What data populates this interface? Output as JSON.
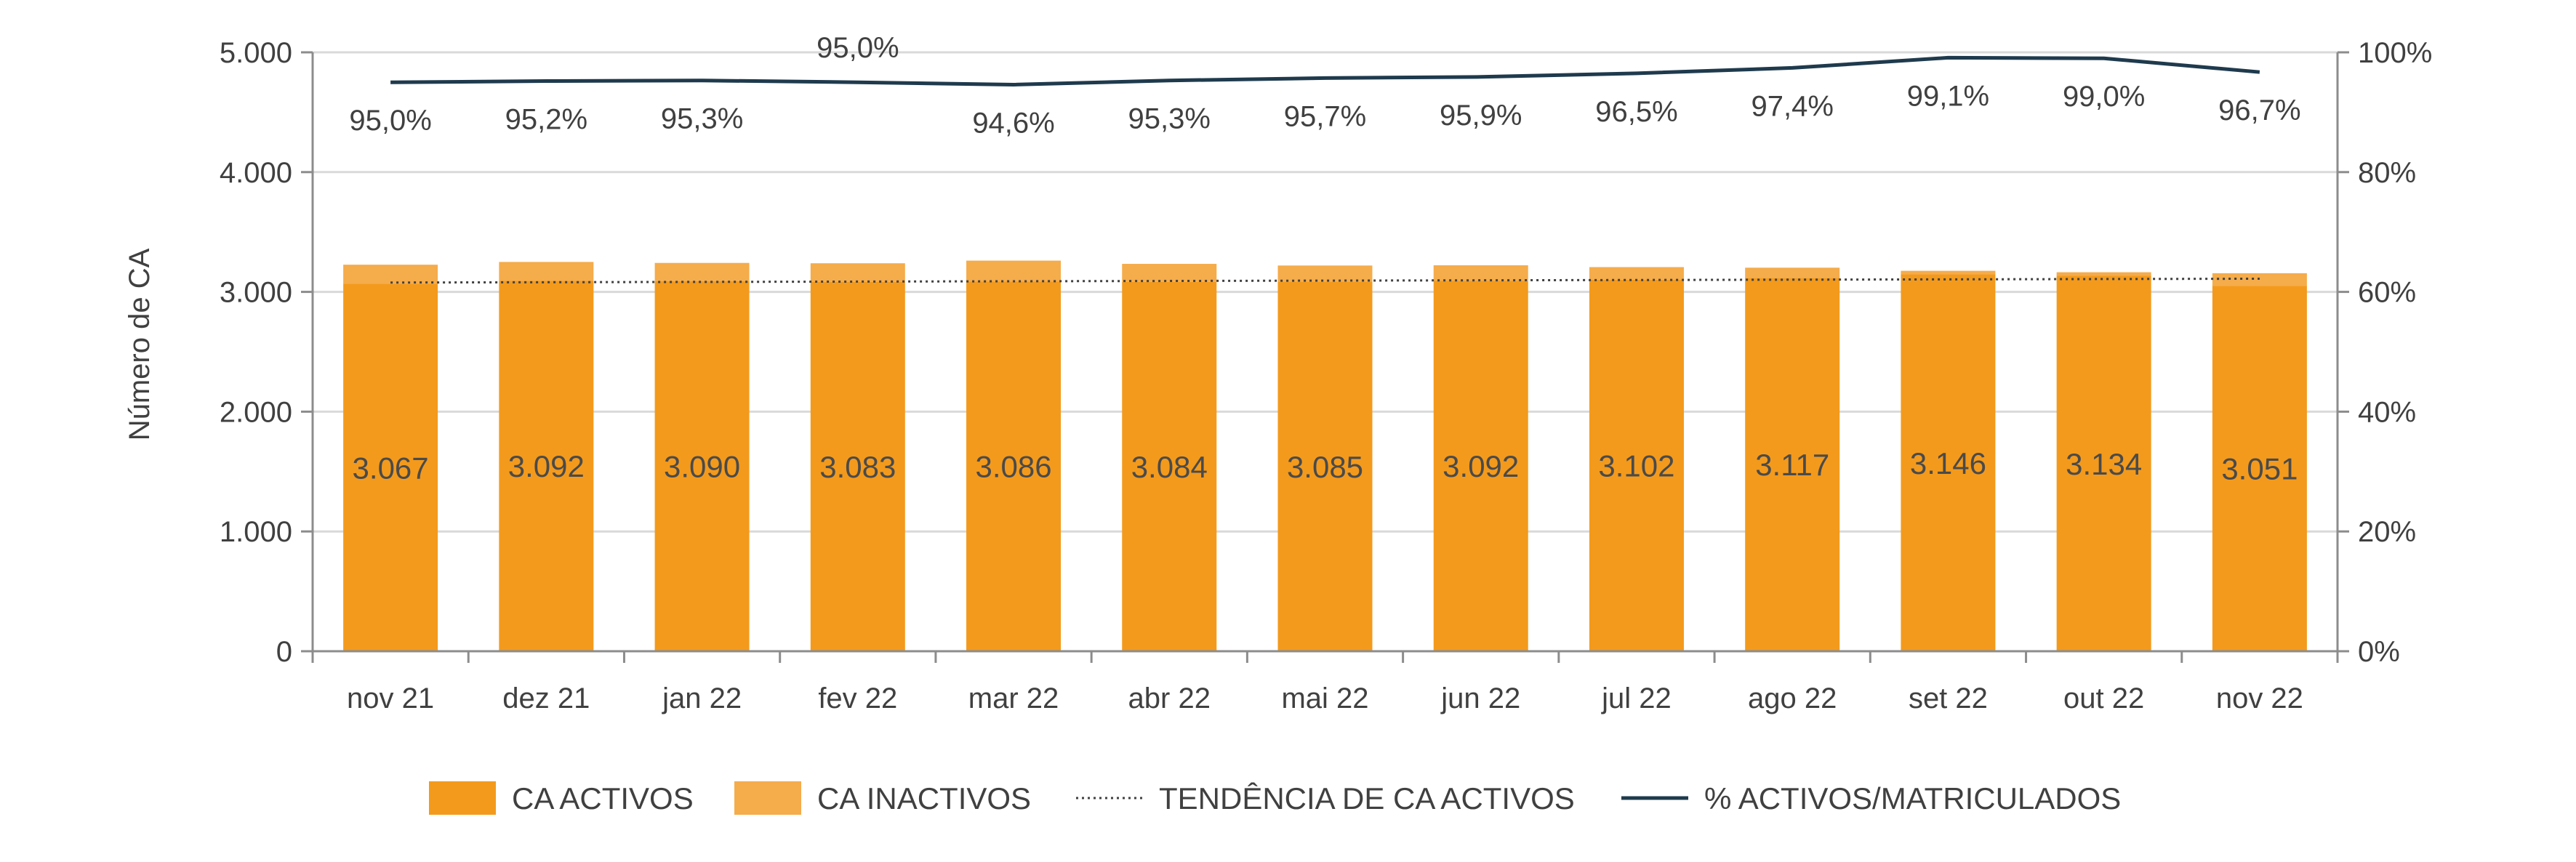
{
  "chart_data": {
    "type": "bar",
    "ylabel": "Número de CA",
    "categories": [
      "nov 21",
      "dez 21",
      "jan 22",
      "fev 22",
      "mar 22",
      "abr 22",
      "mai 22",
      "jun 22",
      "jul 22",
      "ago 22",
      "set 22",
      "out 22",
      "nov 22"
    ],
    "series": [
      {
        "name": "CA ACTIVOS",
        "type": "bar",
        "axis": "left",
        "color": "#F39A1C",
        "values": [
          3067,
          3092,
          3090,
          3083,
          3086,
          3084,
          3085,
          3092,
          3102,
          3117,
          3146,
          3134,
          3051
        ],
        "labels": [
          "3.067",
          "3.092",
          "3.090",
          "3.083",
          "3.086",
          "3.084",
          "3.085",
          "3.092",
          "3.102",
          "3.117",
          "3.146",
          "3.134",
          "3.051"
        ]
      },
      {
        "name": "CA INACTIVOS",
        "type": "bar-stacked",
        "axis": "left",
        "color": "#F5AC4B",
        "values": [
          160,
          158,
          152,
          156,
          175,
          150,
          135,
          130,
          105,
          85,
          30,
          30,
          105
        ]
      },
      {
        "name": "TENDÊNCIA DE CA ACTIVOS",
        "type": "trendline",
        "axis": "left",
        "color": "#404040",
        "values": [
          3078,
          3080,
          3083,
          3086,
          3089,
          3091,
          3094,
          3097,
          3100,
          3102,
          3105,
          3108,
          3110
        ]
      },
      {
        "name": "% ACTIVOS/MATRICULADOS",
        "type": "line",
        "axis": "right",
        "color": "#1F3A4D",
        "values": [
          95.0,
          95.2,
          95.3,
          95.0,
          94.6,
          95.3,
          95.7,
          95.9,
          96.5,
          97.4,
          99.1,
          99.0,
          96.7
        ],
        "labels": [
          "95,0%",
          "95,2%",
          "95,3%",
          "95,0%",
          "94,6%",
          "95,3%",
          "95,7%",
          "95,9%",
          "96,5%",
          "97,4%",
          "99,1%",
          "99,0%",
          "96,7%"
        ]
      }
    ],
    "y_left": {
      "lim": [
        0,
        5000
      ],
      "ticks": [
        "0",
        "1.000",
        "2.000",
        "3.000",
        "4.000",
        "5.000"
      ]
    },
    "y_right": {
      "lim": [
        0,
        100
      ],
      "ticks": [
        "0%",
        "20%",
        "40%",
        "60%",
        "80%",
        "100%"
      ]
    },
    "legend": {
      "placement": "bottom",
      "items": [
        "CA ACTIVOS",
        "CA INACTIVOS",
        "TENDÊNCIA DE CA ACTIVOS",
        "% ACTIVOS/MATRICULADOS"
      ]
    },
    "grid": true
  }
}
